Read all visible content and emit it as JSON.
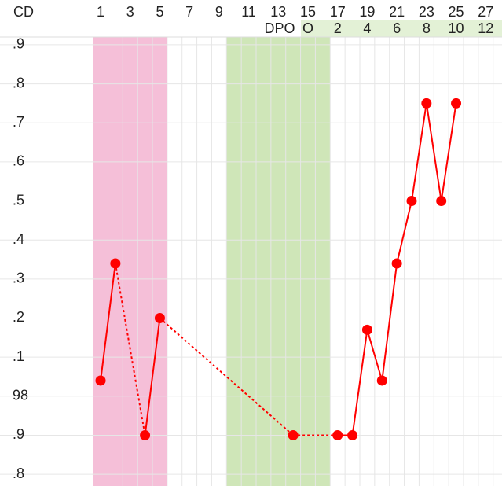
{
  "chart_data": {
    "type": "line",
    "axis_title": "CD",
    "x2_axis_title": "DPO",
    "x": [
      1,
      2,
      3,
      4,
      5,
      6,
      7,
      8,
      9,
      10,
      11,
      12,
      13,
      14,
      15,
      16,
      17,
      18,
      19,
      20,
      21,
      22,
      23,
      24,
      25,
      26,
      27
    ],
    "series": [
      {
        "color": "#ff0000",
        "values": [
          98.04,
          98.34,
          null,
          97.9,
          98.2,
          null,
          null,
          null,
          null,
          null,
          null,
          null,
          null,
          97.9,
          null,
          null,
          97.9,
          97.9,
          98.17,
          98.04,
          98.34,
          98.5,
          98.75,
          98.5,
          98.75,
          null,
          null
        ]
      }
    ],
    "xlim": [
      0.5,
      28.1
    ],
    "xticks": [
      1,
      3,
      5,
      7,
      9,
      11,
      13,
      15,
      17,
      19,
      21,
      23,
      25,
      27
    ],
    "x2ticks": [
      {
        "value": 15,
        "label": "O"
      },
      {
        "value": 17,
        "label": "2"
      },
      {
        "value": 19,
        "label": "4"
      },
      {
        "value": 21,
        "label": "6"
      },
      {
        "value": 23,
        "label": "8"
      },
      {
        "value": 25,
        "label": "10"
      },
      {
        "value": 27,
        "label": "12"
      }
    ],
    "ylim": [
      97.77,
      98.92
    ],
    "yticks": [
      {
        "value": 98.9,
        "label": ".9"
      },
      {
        "value": 98.8,
        "label": ".8"
      },
      {
        "value": 98.7,
        "label": ".7"
      },
      {
        "value": 98.6,
        "label": ".6"
      },
      {
        "value": 98.5,
        "label": ".5"
      },
      {
        "value": 98.4,
        "label": ".4"
      },
      {
        "value": 98.3,
        "label": ".3"
      },
      {
        "value": 98.2,
        "label": ".2"
      },
      {
        "value": 98.1,
        "label": ".1"
      },
      98,
      {
        "value": 97.9,
        "label": ".9"
      },
      {
        "value": 97.8,
        "label": ".8"
      }
    ],
    "phases": [
      {
        "start": 1,
        "end": 5,
        "color": "#f5bfd8"
      },
      {
        "start": 10,
        "end": 16,
        "color": "#cfe6b8"
      }
    ],
    "grid": true
  }
}
